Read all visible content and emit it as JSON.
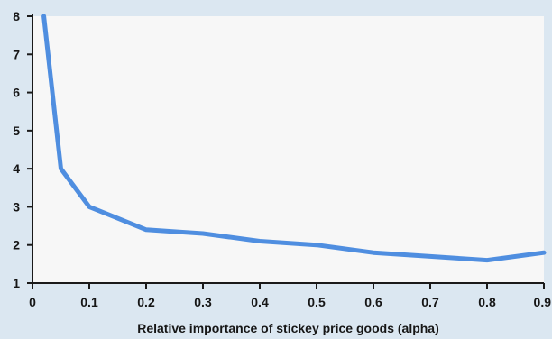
{
  "chart_data": {
    "type": "line",
    "title": "",
    "xlabel": "Relative importance of stickey price goods (alpha)",
    "ylabel": "",
    "xlim": [
      0,
      0.9
    ],
    "ylim": [
      1,
      8
    ],
    "x_ticks": [
      "0",
      "0.1",
      "0.2",
      "0.3",
      "0.4",
      "0.5",
      "0.6",
      "0.7",
      "0.8",
      "0.9"
    ],
    "y_ticks": [
      "1",
      "2",
      "3",
      "4",
      "5",
      "6",
      "7",
      "8"
    ],
    "grid": false,
    "series": [
      {
        "x": [
          0.02,
          0.05,
          0.1,
          0.2,
          0.3,
          0.4,
          0.5,
          0.6,
          0.7,
          0.8,
          0.9
        ],
        "y": [
          8.0,
          4.0,
          3.0,
          2.4,
          2.3,
          2.1,
          2.0,
          1.8,
          1.7,
          1.6,
          1.8
        ],
        "color": "#4f8ee0"
      }
    ],
    "colors": {
      "background": "#dbe7f1",
      "plot_background": "#f7f7f7",
      "axis": "#1a1a1a",
      "line": "#4f8ee0"
    }
  }
}
